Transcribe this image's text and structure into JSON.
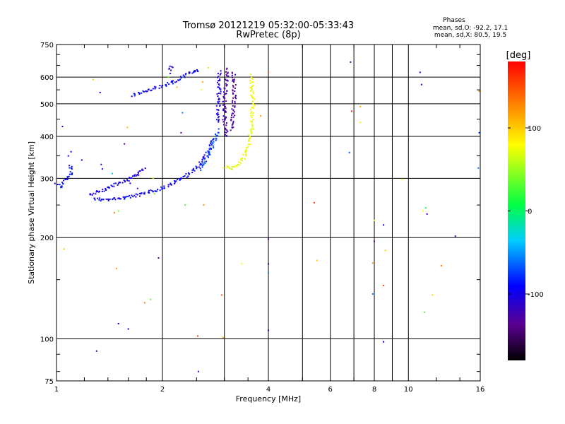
{
  "chart_data": {
    "type": "scatter",
    "title": "Tromsø 20121219 05:32:00-05:33:43",
    "subtitle": "RwPretec (8p)",
    "stats": {
      "header": "Phases",
      "line_o": "mean, sd,O: -92.2, 17.1",
      "line_x": "mean, sd,X:  80.5, 19.5"
    },
    "xlabel": "Frequency [MHz]",
    "ylabel": "Stationary phase Virtual Height [km]",
    "x_scale": "log",
    "y_scale": "log",
    "xlim": [
      1,
      16
    ],
    "ylim": [
      75,
      750
    ],
    "x_ticks": [
      1,
      2,
      4,
      6,
      8,
      10,
      16
    ],
    "y_ticks": [
      75,
      100,
      200,
      300,
      400,
      500,
      600,
      750
    ],
    "grid": true,
    "colorbar": {
      "label": "[deg]",
      "min": -180,
      "max": 180,
      "ticks": [
        100,
        0,
        -100
      ]
    },
    "traces": [
      {
        "phase": -95,
        "points": [
          [
            1.28,
            262
          ],
          [
            1.32,
            260
          ],
          [
            1.38,
            259
          ],
          [
            1.45,
            260
          ],
          [
            1.52,
            262
          ],
          [
            1.6,
            264
          ],
          [
            1.7,
            267
          ],
          [
            1.8,
            271
          ],
          [
            1.9,
            276
          ],
          [
            2.0,
            281
          ],
          [
            2.1,
            287
          ],
          [
            2.2,
            294
          ],
          [
            2.3,
            302
          ],
          [
            2.4,
            312
          ],
          [
            2.5,
            323
          ],
          [
            2.6,
            338
          ],
          [
            2.68,
            355
          ],
          [
            2.75,
            375
          ],
          [
            2.8,
            395
          ]
        ]
      },
      {
        "phase": -100,
        "points": [
          [
            1.24,
            268
          ],
          [
            1.3,
            272
          ],
          [
            1.36,
            277
          ],
          [
            1.42,
            283
          ],
          [
            1.5,
            289
          ],
          [
            1.58,
            296
          ],
          [
            1.65,
            304
          ],
          [
            1.72,
            312
          ],
          [
            1.8,
            320
          ]
        ]
      },
      {
        "phase": -70,
        "points": [
          [
            2.55,
            320
          ],
          [
            2.65,
            340
          ],
          [
            2.75,
            365
          ],
          [
            2.82,
            390
          ],
          [
            2.88,
            420
          ]
        ]
      },
      {
        "phase": -105,
        "points": [
          [
            2.88,
            440
          ],
          [
            2.88,
            480
          ],
          [
            2.89,
            520
          ],
          [
            2.9,
            560
          ],
          [
            2.9,
            600
          ],
          [
            2.91,
            630
          ]
        ]
      },
      {
        "phase": -125,
        "points": [
          [
            3.05,
            400
          ],
          [
            3.0,
            450
          ],
          [
            3.0,
            500
          ],
          [
            3.02,
            550
          ],
          [
            3.05,
            600
          ],
          [
            3.08,
            640
          ]
        ]
      },
      {
        "phase": -130,
        "points": [
          [
            3.15,
            420
          ],
          [
            3.18,
            470
          ],
          [
            3.2,
            520
          ],
          [
            3.2,
            570
          ],
          [
            3.18,
            620
          ]
        ]
      },
      {
        "phase": 75,
        "points": [
          [
            3.0,
            325
          ],
          [
            3.1,
            322
          ],
          [
            3.2,
            322
          ],
          [
            3.3,
            330
          ],
          [
            3.4,
            345
          ],
          [
            3.5,
            370
          ],
          [
            3.55,
            400
          ],
          [
            3.6,
            430
          ],
          [
            3.6,
            470
          ],
          [
            3.62,
            500
          ],
          [
            3.6,
            540
          ],
          [
            3.58,
            580
          ],
          [
            3.58,
            610
          ]
        ]
      },
      {
        "phase": -95,
        "points": [
          [
            1.65,
            530
          ],
          [
            1.75,
            540
          ],
          [
            1.85,
            550
          ],
          [
            1.95,
            560
          ],
          [
            2.05,
            570
          ],
          [
            2.15,
            580
          ],
          [
            2.25,
            595
          ],
          [
            2.35,
            610
          ],
          [
            2.45,
            622
          ],
          [
            2.55,
            632
          ]
        ]
      },
      {
        "phase": -115,
        "points": [
          [
            2.1,
            620
          ],
          [
            2.12,
            640
          ],
          [
            2.15,
            650
          ]
        ]
      },
      {
        "phase": -90,
        "points": [
          [
            1.0,
            290
          ],
          [
            1.03,
            282
          ],
          [
            1.06,
            295
          ],
          [
            1.1,
            310
          ],
          [
            1.1,
            330
          ]
        ]
      }
    ],
    "scatter": [
      [
        1.04,
        428,
        -115
      ],
      [
        1.08,
        350,
        -100
      ],
      [
        1.1,
        360,
        -95
      ],
      [
        1.18,
        340,
        -110
      ],
      [
        1.33,
        540,
        -100
      ],
      [
        1.27,
        590,
        95
      ],
      [
        1.34,
        330,
        -125
      ],
      [
        1.35,
        320,
        -110
      ],
      [
        1.44,
        310,
        -40
      ],
      [
        1.5,
        240,
        40
      ],
      [
        1.46,
        237,
        130
      ],
      [
        1.56,
        380,
        -140
      ],
      [
        1.59,
        425,
        105
      ],
      [
        1.62,
        290,
        -95
      ],
      [
        1.7,
        280,
        -130
      ],
      [
        1.88,
        300,
        60
      ],
      [
        1.9,
        270,
        35
      ],
      [
        2.08,
        600,
        40
      ],
      [
        2.2,
        560,
        110
      ],
      [
        2.28,
        470,
        -60
      ],
      [
        2.26,
        410,
        -140
      ],
      [
        2.32,
        250,
        30
      ],
      [
        2.6,
        580,
        120
      ],
      [
        2.62,
        250,
        120
      ],
      [
        2.7,
        640,
        90
      ],
      [
        2.58,
        550,
        80
      ],
      [
        3.8,
        460,
        120
      ],
      [
        4.0,
        620,
        150
      ],
      [
        5.4,
        254,
        165
      ],
      [
        6.85,
        665,
        -140
      ],
      [
        6.9,
        475,
        160
      ],
      [
        6.8,
        358,
        -70
      ],
      [
        7.3,
        440,
        90
      ],
      [
        7.3,
        490,
        110
      ],
      [
        8.0,
        225,
        80
      ],
      [
        8.0,
        195,
        -140
      ],
      [
        8.5,
        218,
        -100
      ],
      [
        8.6,
        183,
        100
      ],
      [
        9.6,
        298,
        75
      ],
      [
        10.8,
        620,
        -100
      ],
      [
        10.9,
        570,
        -110
      ],
      [
        11.0,
        240,
        80
      ],
      [
        11.2,
        245,
        15
      ],
      [
        11.3,
        235,
        -130
      ],
      [
        13.6,
        202,
        -130
      ],
      [
        15.9,
        410,
        -80
      ],
      [
        15.9,
        545,
        120
      ],
      [
        15.8,
        322,
        -60
      ],
      [
        1.05,
        185,
        100
      ],
      [
        1.3,
        92,
        -120
      ],
      [
        1.48,
        162,
        120
      ],
      [
        1.5,
        111,
        -100
      ],
      [
        1.6,
        107,
        -110
      ],
      [
        1.78,
        128,
        130
      ],
      [
        1.85,
        131,
        35
      ],
      [
        1.95,
        174,
        -140
      ],
      [
        2.52,
        102,
        150
      ],
      [
        2.53,
        80,
        -85
      ],
      [
        2.95,
        135,
        140
      ],
      [
        2.97,
        101,
        110
      ],
      [
        3.36,
        167,
        75
      ],
      [
        4.0,
        198,
        -140
      ],
      [
        4.0,
        167,
        -120
      ],
      [
        4.0,
        157,
        -55
      ],
      [
        4.0,
        106,
        -110
      ],
      [
        5.5,
        171,
        100
      ],
      [
        7.92,
        168,
        120
      ],
      [
        7.92,
        136,
        -60
      ],
      [
        8.5,
        144,
        155
      ],
      [
        8.5,
        98,
        -100
      ],
      [
        11.1,
        120,
        30
      ],
      [
        11.7,
        135,
        95
      ],
      [
        12.4,
        165,
        140
      ]
    ]
  }
}
